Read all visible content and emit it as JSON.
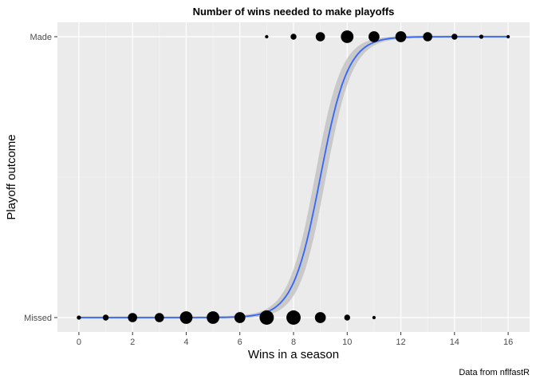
{
  "chart_data": {
    "type": "scatter",
    "title": "Number of wins needed to make playoffs",
    "xlabel": "Wins in a season",
    "ylabel": "Playoff outcome",
    "caption": "Data from nflfastR",
    "x_ticks": [
      "0",
      "2",
      "4",
      "6",
      "8",
      "10",
      "12",
      "14",
      "16"
    ],
    "xlim": [
      -0.8,
      16.8
    ],
    "y_categories": [
      "Missed",
      "Made"
    ],
    "grid": true,
    "background": "#ebebeb",
    "point_color": "#000000",
    "fit_color": "#3366ff",
    "ribbon_color": "#bdbdbd",
    "points": {
      "Missed": [
        {
          "x": 0,
          "size": 1
        },
        {
          "x": 1,
          "size": 2
        },
        {
          "x": 2,
          "size": 4
        },
        {
          "x": 3,
          "size": 4
        },
        {
          "x": 4,
          "size": 6
        },
        {
          "x": 5,
          "size": 6
        },
        {
          "x": 6,
          "size": 5
        },
        {
          "x": 7,
          "size": 7
        },
        {
          "x": 8,
          "size": 7
        },
        {
          "x": 9,
          "size": 5
        },
        {
          "x": 10,
          "size": 2
        },
        {
          "x": 11,
          "size": 0.5
        }
      ],
      "Made": [
        {
          "x": 7,
          "size": 0.5
        },
        {
          "x": 8,
          "size": 2
        },
        {
          "x": 9,
          "size": 4
        },
        {
          "x": 10,
          "size": 6
        },
        {
          "x": 11,
          "size": 5
        },
        {
          "x": 12,
          "size": 5
        },
        {
          "x": 13,
          "size": 4
        },
        {
          "x": 14,
          "size": 2
        },
        {
          "x": 15,
          "size": 1
        },
        {
          "x": 16,
          "size": 0.5
        }
      ]
    },
    "fit": {
      "type": "logistic",
      "midpoint": 9.0,
      "slope": 1.95,
      "ribbon_width": 0.045
    }
  }
}
